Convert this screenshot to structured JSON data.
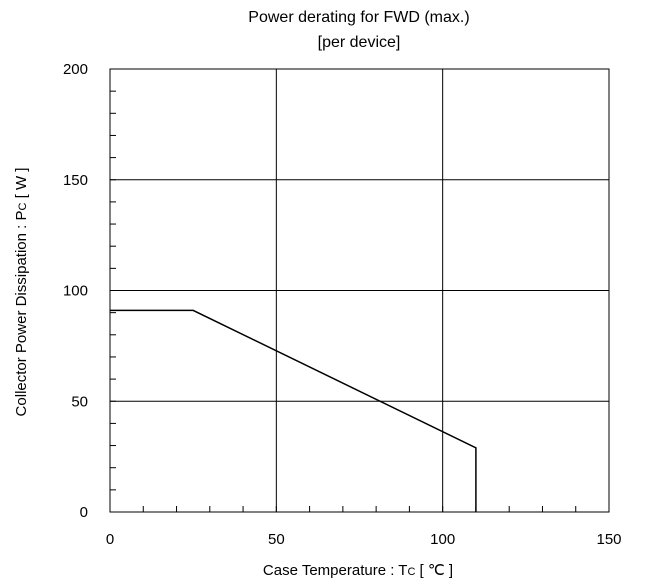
{
  "chart_data": {
    "type": "line",
    "title": "Power derating for FWD (max.)",
    "subtitle": "[per device]",
    "xlabel": {
      "prefix": "Case Temperature  :  T",
      "sub": "C",
      "suffix": " [ ℃ ]"
    },
    "ylabel": {
      "prefix": "Collector Power Dissipation : P",
      "sub": "C",
      "suffix": " [ W ]"
    },
    "xlim": [
      0,
      150
    ],
    "ylim": [
      0,
      200
    ],
    "x_ticks": [
      "0",
      "50",
      "100",
      "150"
    ],
    "y_ticks": [
      "0",
      "50",
      "100",
      "150",
      "200"
    ],
    "x_minor_step": 10,
    "y_minor_step": 10,
    "grid": true,
    "series": [
      {
        "x": [
          0,
          25,
          110,
          110
        ],
        "y": [
          91,
          91,
          29,
          0
        ]
      }
    ]
  }
}
